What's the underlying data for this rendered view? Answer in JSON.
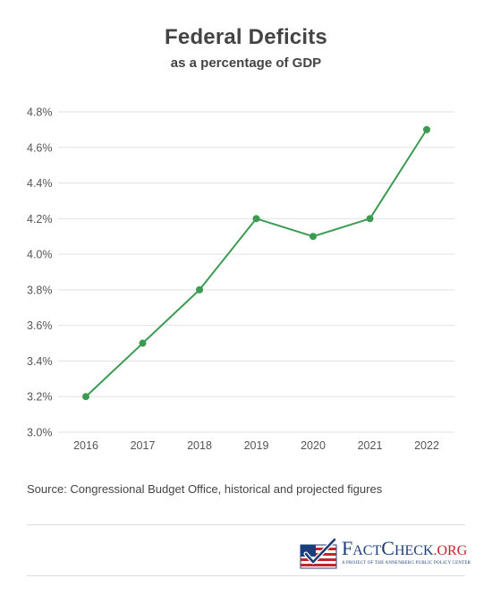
{
  "chart_data": {
    "type": "line",
    "title": "Federal Deficits",
    "subtitle": "as a percentage of GDP",
    "x": [
      "2016",
      "2017",
      "2018",
      "2019",
      "2020",
      "2021",
      "2022"
    ],
    "series": [
      {
        "values": [
          3.2,
          3.5,
          3.8,
          4.2,
          4.1,
          4.2,
          4.7
        ]
      }
    ],
    "yticks": [
      3.0,
      3.2,
      3.4,
      3.6,
      3.8,
      4.0,
      4.2,
      4.4,
      4.6,
      4.8
    ],
    "ytick_labels": [
      "3.0%",
      "3.2%",
      "3.4%",
      "3.6%",
      "3.8%",
      "4.0%",
      "4.2%",
      "4.4%",
      "4.6%",
      "4.8%"
    ],
    "ylim": [
      3.0,
      4.8
    ],
    "grid": true,
    "line_color": "#3c9b52",
    "grid_color": "#e2e2e2"
  },
  "source_text": "Source: Congressional Budget Office, historical and projected figures",
  "logo": {
    "name": "FactCheck.org",
    "tagline": "A Project of the Annenberg Public Policy Center",
    "colors": {
      "blue": "#1a3e7a",
      "red": "#c0262d"
    }
  }
}
